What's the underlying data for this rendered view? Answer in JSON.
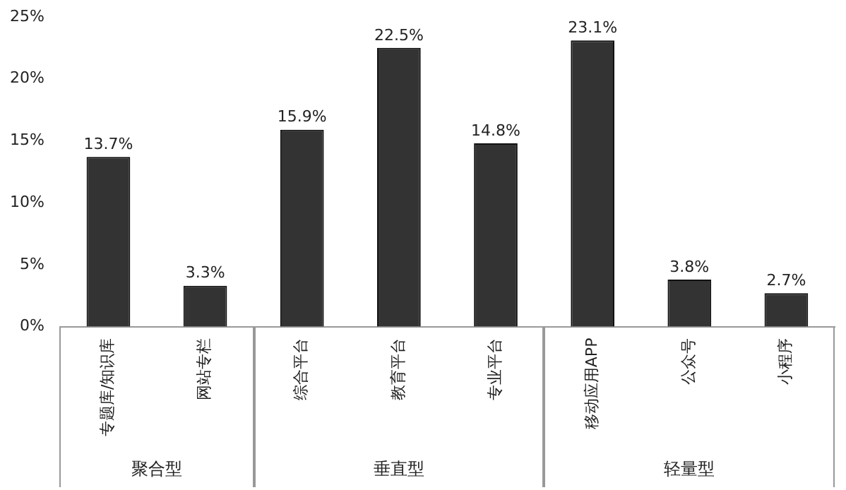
{
  "chart_data": {
    "type": "bar",
    "categories": [
      "专题库/知识库",
      "网站专栏",
      "综合平台",
      "教育平台",
      "专业平台",
      "移动应用APP",
      "公众号",
      "小程序"
    ],
    "values": [
      13.7,
      3.3,
      15.9,
      22.5,
      14.8,
      23.1,
      3.8,
      2.7
    ],
    "value_labels": [
      "13.7%",
      "3.3%",
      "15.9%",
      "22.5%",
      "14.8%",
      "23.1%",
      "3.8%",
      "2.7%"
    ],
    "color": "#333333",
    "ylim": [
      0,
      25
    ],
    "yticks": [
      {
        "value": 0,
        "label": "0%"
      },
      {
        "value": 5,
        "label": "5%"
      },
      {
        "value": 10,
        "label": "10%"
      },
      {
        "value": 15,
        "label": "15%"
      },
      {
        "value": 20,
        "label": "20%"
      },
      {
        "value": 25,
        "label": "25%"
      }
    ],
    "grid": false,
    "annotations": [
      "聚合型",
      "垂直型",
      "轻量型"
    ]
  }
}
